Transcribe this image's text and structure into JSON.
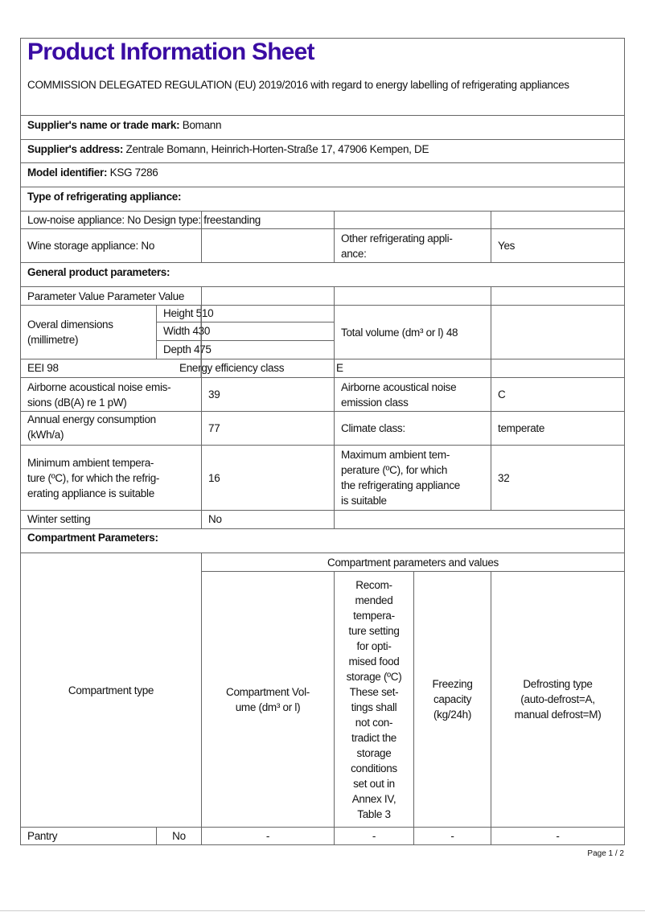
{
  "title": "Product Information Sheet",
  "regulation": "COMMISSION DELEGATED REGULATION (EU) 2019/2016 with regard to energy labelling of refrigerating appliances",
  "supplier_name": {
    "label": "Supplier's name or trade mark:",
    "value": "Bomann"
  },
  "supplier_address": {
    "label": "Supplier's address:",
    "value": "Zentrale Bomann, Heinrich-Horten-Straße 17, 47906 Kempen, DE"
  },
  "model": {
    "label": "Model identifier:",
    "value": "KSG 7286"
  },
  "type_heading": "Type of refrigerating appliance:",
  "low_noise_row": "Low-noise appliance: No Design type: freestanding",
  "wine": "Wine storage appliance: No",
  "other_label": "Other refrigerating appli-\nance:",
  "other_value": "Yes",
  "general_heading": "General product parameters:",
  "param_header": "Parameter Value Parameter Value",
  "dimensions": {
    "label": "Overal dimensions\n(millimetre)",
    "height": "Height 510",
    "width": "Width 430",
    "depth": "Depth 475"
  },
  "total_volume": "Total volume (dm³ or l) 48",
  "eei": "EEI 98",
  "energy_class_label": "Energy efficiency class",
  "energy_class_value": "E",
  "noise": {
    "label": "Airborne acoustical noise emis-\nsions (dB(A) re 1 pW)",
    "value": "39",
    "class_label": "Airborne acoustical noise\nemission class",
    "class_value": "C"
  },
  "annual": {
    "label": "Annual energy consumption\n(kWh/a)",
    "value": "77",
    "climate_label": "Climate class:",
    "climate_value": "temperate"
  },
  "min_temp": {
    "label": "Minimum ambient tempera-\nture (ºC), for which the refrig-\nerating appliance is suitable",
    "value": "16"
  },
  "max_temp": {
    "label": "Maximum ambient tem-\nperature (ºC), for which\nthe refrigerating appliance\nis suitable",
    "value": "32"
  },
  "winter": {
    "label": "Winter setting",
    "value": "No"
  },
  "compartment_heading": "Compartment Parameters:",
  "compartment": {
    "type_header": "Compartment type",
    "values_header": "Compartment parameters and values",
    "volume_header": "Compartment Vol-\nume (dm³ or l)",
    "temp_header": "Recom-\nmended\ntempera-\nture setting\nfor opti-\nmised food\nstorage (ºC)\nThese set-\ntings shall\nnot con-\ntradict the\nstorage\nconditions\nset out in\nAnnex IV,\nTable 3",
    "freezing_header": "Freezing\ncapacity\n(kg/24h)",
    "defrost_header": "Defrosting type\n(auto-defrost=A,\nmanual defrost=M)",
    "rows": [
      {
        "type": "Pantry",
        "present": "No",
        "volume": "-",
        "temp": "-",
        "freezing": "-",
        "defrost": "-"
      }
    ]
  },
  "page_indicator": "Page 1 / 2"
}
